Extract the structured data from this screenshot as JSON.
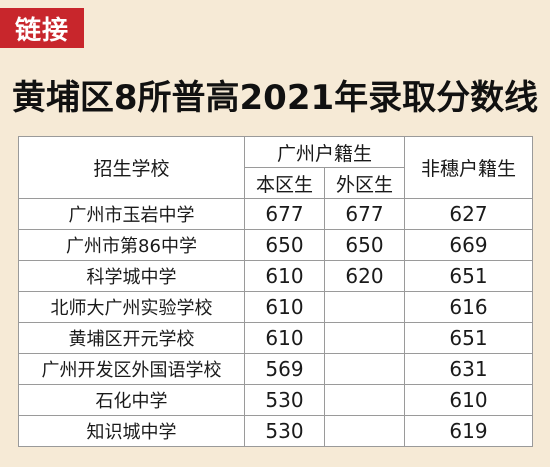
{
  "tag": "链接",
  "title": "黄埔区8所普高2021年录取分数线",
  "table": {
    "headers": {
      "school": "招生学校",
      "gz_hukou": "广州户籍生",
      "local_district": "本区生",
      "other_district": "外区生",
      "non_gz": "非穗户籍生"
    },
    "rows": [
      {
        "school": "广州市玉岩中学",
        "local": "677",
        "other": "677",
        "non_gz": "627"
      },
      {
        "school": "广州市第86中学",
        "local": "650",
        "other": "650",
        "non_gz": "669"
      },
      {
        "school": "科学城中学",
        "local": "610",
        "other": "620",
        "non_gz": "651"
      },
      {
        "school": "北师大广州实验学校",
        "local": "610",
        "other": "",
        "non_gz": "616"
      },
      {
        "school": "黄埔区开元学校",
        "local": "610",
        "other": "",
        "non_gz": "651"
      },
      {
        "school": "广州开发区外国语学校",
        "local": "569",
        "other": "",
        "non_gz": "631"
      },
      {
        "school": "石化中学",
        "local": "530",
        "other": "",
        "non_gz": "610"
      },
      {
        "school": "知识城中学",
        "local": "530",
        "other": "",
        "non_gz": "619"
      }
    ]
  },
  "colors": {
    "tag_bg": "#c8262c",
    "page_bg": "#f6ead6",
    "border": "#9a9a9a"
  }
}
